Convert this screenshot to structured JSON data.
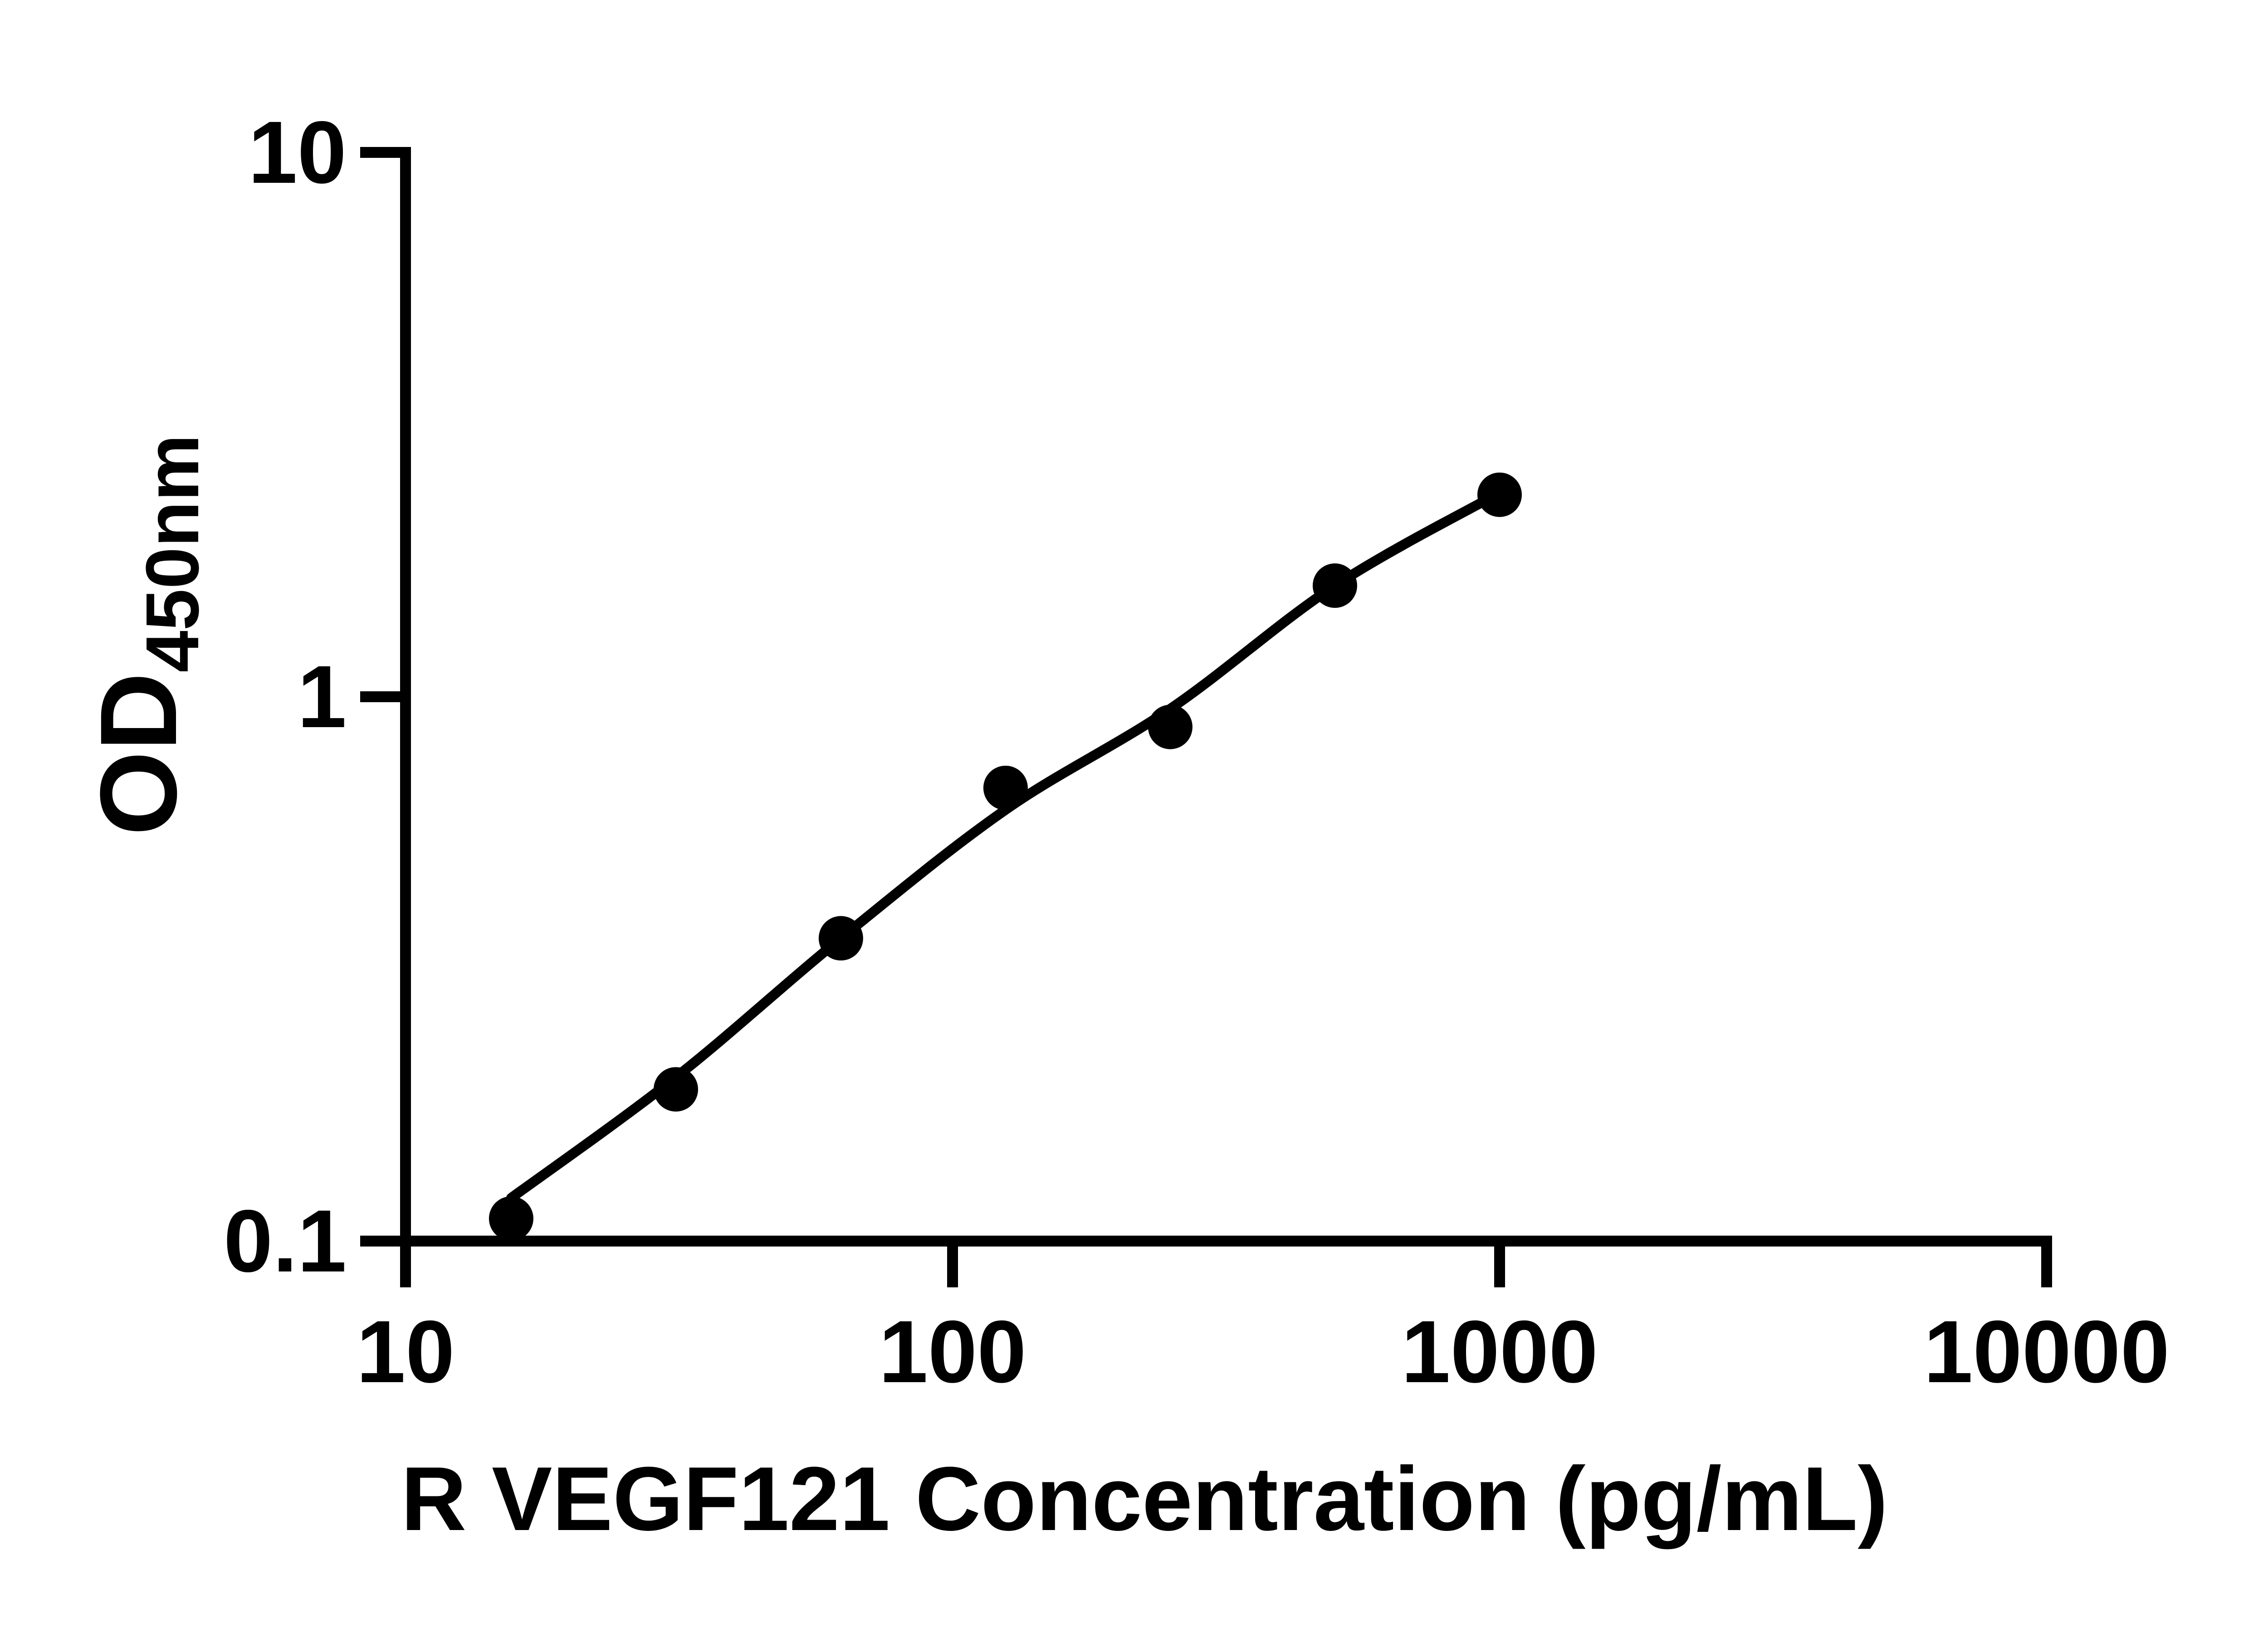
{
  "figure": {
    "background_color": "#ffffff",
    "ink_color": "#000000"
  },
  "chart_data": {
    "type": "scatter",
    "title": "",
    "xlabel": "R VEGF121 Concentration (pg/mL)",
    "ylabel": "OD",
    "ylabel_subscript": "450nm",
    "x_scale": "log",
    "y_scale": "log",
    "xlim": [
      10,
      10000
    ],
    "ylim": [
      0.1,
      10
    ],
    "grid": false,
    "legend": null,
    "x_tick_values": [
      10,
      100,
      1000,
      10000
    ],
    "x_tick_labels": [
      "10",
      "100",
      "1000",
      "10000"
    ],
    "y_tick_values": [
      10,
      1,
      0.1
    ],
    "y_tick_labels": [
      "10",
      "1",
      "0.1"
    ],
    "series": [
      {
        "name": "standard-points",
        "marker": "filled-circle",
        "color": "#000000",
        "x": [
          15.6,
          31.2,
          62.5,
          125,
          250,
          500,
          1000
        ],
        "y": [
          0.11,
          0.19,
          0.36,
          0.68,
          0.88,
          1.6,
          2.35
        ]
      }
    ],
    "fit_curve": {
      "name": "fitted-standard-curve",
      "color": "#000000",
      "x": [
        15.6,
        31.2,
        62.5,
        125,
        250,
        500,
        1000
      ],
      "y": [
        0.12,
        0.2,
        0.36,
        0.62,
        0.95,
        1.6,
        2.37
      ]
    }
  }
}
